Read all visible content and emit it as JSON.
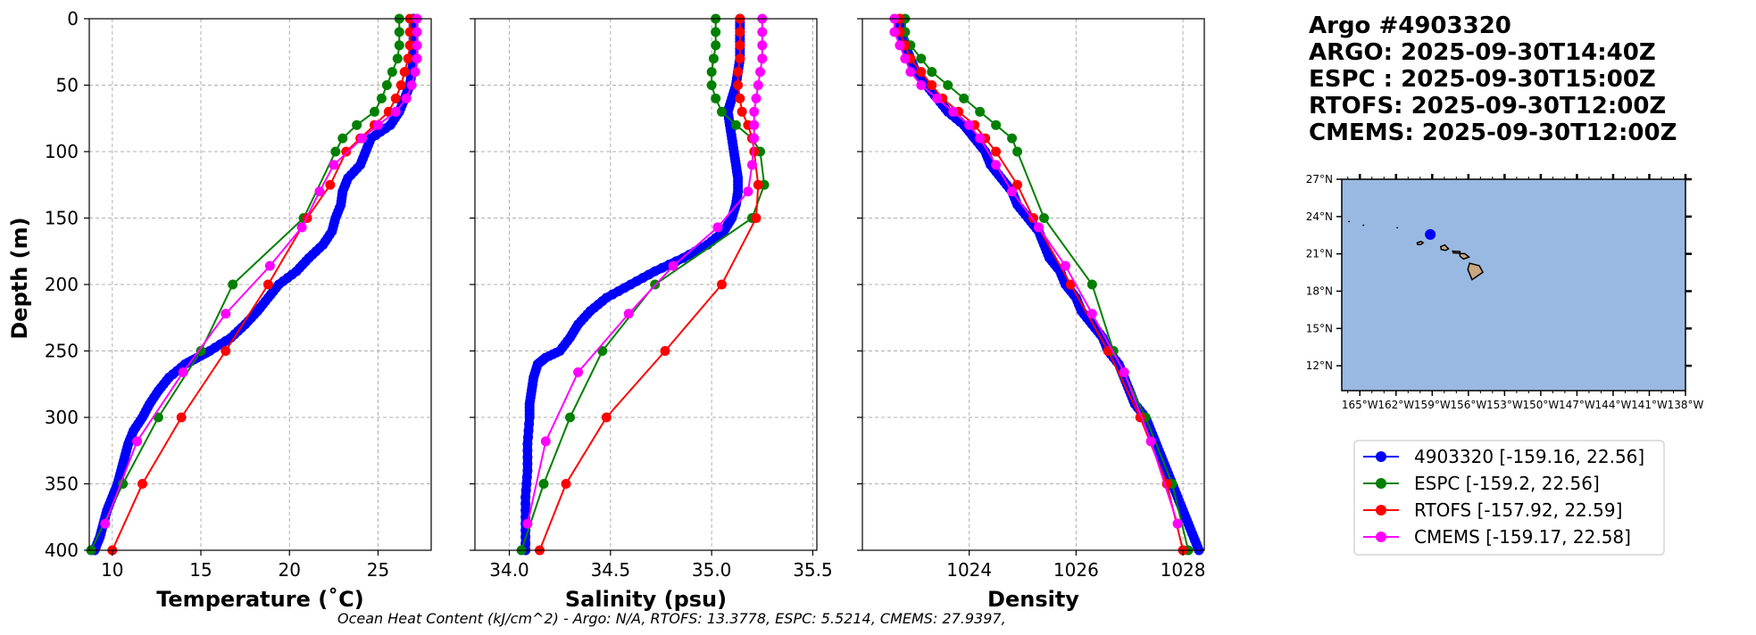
{
  "title_lines": [
    "Argo #4903320",
    "ARGO: 2025-09-30T14:40Z",
    "ESPC : 2025-09-30T15:00Z",
    "RTOFS: 2025-09-30T12:00Z",
    "CMEMS: 2025-09-30T12:00Z"
  ],
  "footer": "Ocean Heat Content (kJ/cm^2) - Argo: N/A,  RTOFS: 13.3778,  ESPC: 5.5214,  CMEMS: 27.9397,",
  "colors": {
    "argo": "#0000ff",
    "espc": "#008000",
    "rtofs": "#ff0000",
    "cmems": "#ff00ff",
    "ocean": "#9ab9e2",
    "land": "#c9a882"
  },
  "legend": [
    {
      "label": "4903320 [-159.16, 22.56]",
      "color": "#0000ff"
    },
    {
      "label": "ESPC [-159.2, 22.56]",
      "color": "#008000"
    },
    {
      "label": "RTOFS [-157.92, 22.59]",
      "color": "#ff0000"
    },
    {
      "label": "CMEMS [-159.17, 22.58]",
      "color": "#ff00ff"
    }
  ],
  "map": {
    "lat_ticks": [
      "27°N",
      "24°N",
      "21°N",
      "18°N",
      "15°N",
      "12°N"
    ],
    "lon_ticks": [
      "165°W",
      "162°W",
      "159°W",
      "156°W",
      "153°W",
      "150°W",
      "147°W",
      "144°W",
      "141°W",
      "138°W"
    ],
    "lat_values": [
      27,
      24,
      21,
      18,
      15,
      12
    ],
    "lon_values": [
      -165,
      -162,
      -159,
      -156,
      -153,
      -150,
      -147,
      -144,
      -141,
      -138
    ],
    "float_position": {
      "lon": -159.16,
      "lat": 22.56
    },
    "extent": {
      "lon_min": -166.5,
      "lon_max": -138,
      "lat_min": 10,
      "lat_max": 27
    }
  },
  "chart_data": [
    {
      "type": "line",
      "title": "",
      "xlabel": "Temperature (˚C)",
      "ylabel": "Depth (m)",
      "xlim": [
        8.7,
        28.0
      ],
      "ylim": [
        400,
        0
      ],
      "x_ticks": [
        10,
        15,
        20,
        25
      ],
      "y_ticks": [
        0,
        50,
        100,
        150,
        200,
        250,
        300,
        350,
        400
      ],
      "grid": true,
      "series": [
        {
          "name": "4903320",
          "dense": true,
          "depth": [
            0,
            10,
            20,
            30,
            40,
            50,
            60,
            70,
            80,
            90,
            100,
            110,
            120,
            130,
            140,
            150,
            160,
            170,
            180,
            190,
            200,
            210,
            220,
            230,
            240,
            250,
            255,
            260,
            270,
            280,
            290,
            300,
            310,
            320,
            330,
            340,
            350,
            360,
            370,
            380,
            390,
            400
          ],
          "values": [
            27.0,
            27.0,
            27.0,
            27.0,
            26.9,
            26.8,
            26.5,
            26.2,
            25.7,
            24.6,
            24.3,
            24.0,
            23.3,
            23.0,
            22.9,
            22.6,
            22.4,
            21.9,
            21.1,
            20.4,
            19.4,
            18.8,
            18.2,
            17.5,
            16.7,
            15.5,
            14.8,
            14.1,
            13.2,
            12.6,
            12.1,
            11.7,
            11.2,
            10.9,
            10.7,
            10.5,
            10.3,
            10.0,
            9.7,
            9.5,
            9.3,
            9.0
          ]
        },
        {
          "name": "ESPC",
          "depth": [
            0,
            10,
            20,
            30,
            40,
            50,
            60,
            70,
            80,
            90,
            100,
            150,
            200,
            250,
            300,
            350,
            400
          ],
          "values": [
            26.2,
            26.2,
            26.2,
            26.1,
            25.8,
            25.5,
            25.2,
            24.8,
            23.8,
            23.0,
            22.6,
            20.8,
            16.8,
            15.0,
            12.6,
            10.6,
            8.8
          ]
        },
        {
          "name": "RTOFS",
          "depth": [
            0,
            10,
            20,
            30,
            40,
            50,
            60,
            70,
            80,
            90,
            100,
            125,
            150,
            200,
            250,
            300,
            350,
            400
          ],
          "values": [
            26.8,
            26.8,
            26.8,
            26.7,
            26.5,
            26.3,
            26.0,
            25.6,
            24.8,
            24.0,
            23.2,
            22.3,
            21.0,
            18.8,
            16.4,
            13.9,
            11.7,
            10.0
          ]
        },
        {
          "name": "CMEMS",
          "depth": [
            0,
            10,
            20,
            30,
            40,
            50,
            60,
            70,
            80,
            90,
            110,
            130,
            157,
            186,
            222,
            266,
            318,
            380
          ],
          "values": [
            27.2,
            27.2,
            27.2,
            27.2,
            27.1,
            26.9,
            26.6,
            26.0,
            25.0,
            24.1,
            22.5,
            21.7,
            20.7,
            18.9,
            16.4,
            14.0,
            11.4,
            9.6
          ]
        }
      ]
    },
    {
      "type": "line",
      "title": "",
      "xlabel": "Salinity (psu)",
      "ylabel": "",
      "xlim": [
        33.83,
        35.52
      ],
      "ylim": [
        400,
        0
      ],
      "x_ticks": [
        34.0,
        34.5,
        35.0,
        35.5
      ],
      "x_tick_labels": [
        "34.0",
        "34.5",
        "35.0",
        "35.5"
      ],
      "grid": true,
      "series": [
        {
          "name": "4903320",
          "dense": true,
          "depth": [
            0,
            10,
            20,
            30,
            40,
            50,
            60,
            70,
            80,
            90,
            100,
            110,
            120,
            130,
            140,
            150,
            160,
            170,
            180,
            190,
            200,
            210,
            220,
            230,
            240,
            250,
            255,
            260,
            270,
            280,
            290,
            300,
            320,
            340,
            360,
            380,
            400
          ],
          "values": [
            35.14,
            35.14,
            35.14,
            35.14,
            35.13,
            35.12,
            35.1,
            35.08,
            35.09,
            35.1,
            35.11,
            35.12,
            35.13,
            35.13,
            35.12,
            35.1,
            35.06,
            34.98,
            34.86,
            34.72,
            34.6,
            34.48,
            34.4,
            34.34,
            34.3,
            34.25,
            34.18,
            34.14,
            34.12,
            34.11,
            34.1,
            34.1,
            34.09,
            34.09,
            34.08,
            34.08,
            34.08
          ]
        },
        {
          "name": "ESPC",
          "depth": [
            0,
            10,
            20,
            30,
            40,
            50,
            60,
            70,
            80,
            90,
            100,
            125,
            150,
            200,
            250,
            300,
            350,
            400
          ],
          "values": [
            35.02,
            35.02,
            35.02,
            35.01,
            35.0,
            35.0,
            35.02,
            35.05,
            35.12,
            35.2,
            35.24,
            35.26,
            35.2,
            34.72,
            34.46,
            34.3,
            34.17,
            34.06
          ]
        },
        {
          "name": "RTOFS",
          "depth": [
            0,
            10,
            20,
            30,
            40,
            50,
            60,
            70,
            80,
            90,
            100,
            125,
            150,
            200,
            250,
            300,
            350,
            400
          ],
          "values": [
            35.14,
            35.14,
            35.14,
            35.14,
            35.13,
            35.13,
            35.14,
            35.15,
            35.18,
            35.2,
            35.21,
            35.23,
            35.22,
            35.05,
            34.77,
            34.48,
            34.28,
            34.15
          ]
        },
        {
          "name": "CMEMS",
          "depth": [
            0,
            10,
            20,
            30,
            40,
            50,
            60,
            70,
            80,
            90,
            110,
            130,
            157,
            186,
            222,
            266,
            318,
            380
          ],
          "values": [
            35.25,
            35.25,
            35.25,
            35.25,
            35.24,
            35.23,
            35.22,
            35.21,
            35.21,
            35.21,
            35.2,
            35.18,
            35.03,
            34.81,
            34.59,
            34.34,
            34.18,
            34.09
          ]
        }
      ]
    },
    {
      "type": "line",
      "title": "",
      "xlabel": "Density",
      "ylabel": "",
      "xlim": [
        1022.0,
        1028.4
      ],
      "ylim": [
        400,
        0
      ],
      "x_ticks": [
        1024,
        1026,
        1028
      ],
      "grid": true,
      "series": [
        {
          "name": "4903320",
          "dense": true,
          "depth": [
            0,
            10,
            20,
            30,
            40,
            50,
            60,
            70,
            80,
            90,
            100,
            110,
            120,
            130,
            140,
            150,
            160,
            170,
            180,
            190,
            200,
            210,
            220,
            230,
            240,
            250,
            260,
            270,
            280,
            290,
            300,
            310,
            320,
            330,
            340,
            350,
            360,
            370,
            380,
            390,
            400
          ],
          "values": [
            1022.7,
            1022.7,
            1022.8,
            1022.9,
            1023.0,
            1023.2,
            1023.4,
            1023.6,
            1023.9,
            1024.1,
            1024.3,
            1024.4,
            1024.6,
            1024.8,
            1024.9,
            1025.1,
            1025.3,
            1025.4,
            1025.5,
            1025.7,
            1025.8,
            1026.0,
            1026.1,
            1026.3,
            1026.5,
            1026.6,
            1026.8,
            1026.9,
            1027.0,
            1027.1,
            1027.3,
            1027.4,
            1027.5,
            1027.6,
            1027.7,
            1027.8,
            1027.9,
            1028.0,
            1028.1,
            1028.2,
            1028.3
          ]
        },
        {
          "name": "ESPC",
          "depth": [
            0,
            10,
            20,
            30,
            40,
            50,
            60,
            70,
            80,
            90,
            100,
            150,
            200,
            250,
            300,
            350,
            400
          ],
          "values": [
            1022.8,
            1022.8,
            1022.9,
            1023.1,
            1023.3,
            1023.6,
            1023.9,
            1024.2,
            1024.5,
            1024.8,
            1024.9,
            1025.4,
            1026.3,
            1026.7,
            1027.3,
            1027.8,
            1028.1
          ]
        },
        {
          "name": "RTOFS",
          "depth": [
            0,
            10,
            20,
            30,
            40,
            50,
            60,
            70,
            80,
            90,
            100,
            125,
            150,
            200,
            250,
            300,
            350,
            400
          ],
          "values": [
            1022.7,
            1022.7,
            1022.8,
            1022.9,
            1023.1,
            1023.3,
            1023.5,
            1023.8,
            1024.1,
            1024.3,
            1024.5,
            1024.9,
            1025.2,
            1025.9,
            1026.6,
            1027.2,
            1027.7,
            1028.0
          ]
        },
        {
          "name": "CMEMS",
          "depth": [
            0,
            10,
            20,
            30,
            40,
            50,
            60,
            70,
            80,
            90,
            110,
            130,
            157,
            186,
            222,
            266,
            318,
            380
          ],
          "values": [
            1022.6,
            1022.6,
            1022.7,
            1022.8,
            1022.9,
            1023.1,
            1023.4,
            1023.7,
            1024.0,
            1024.2,
            1024.5,
            1024.8,
            1025.3,
            1025.8,
            1026.3,
            1026.9,
            1027.4,
            1027.9
          ]
        }
      ]
    }
  ]
}
